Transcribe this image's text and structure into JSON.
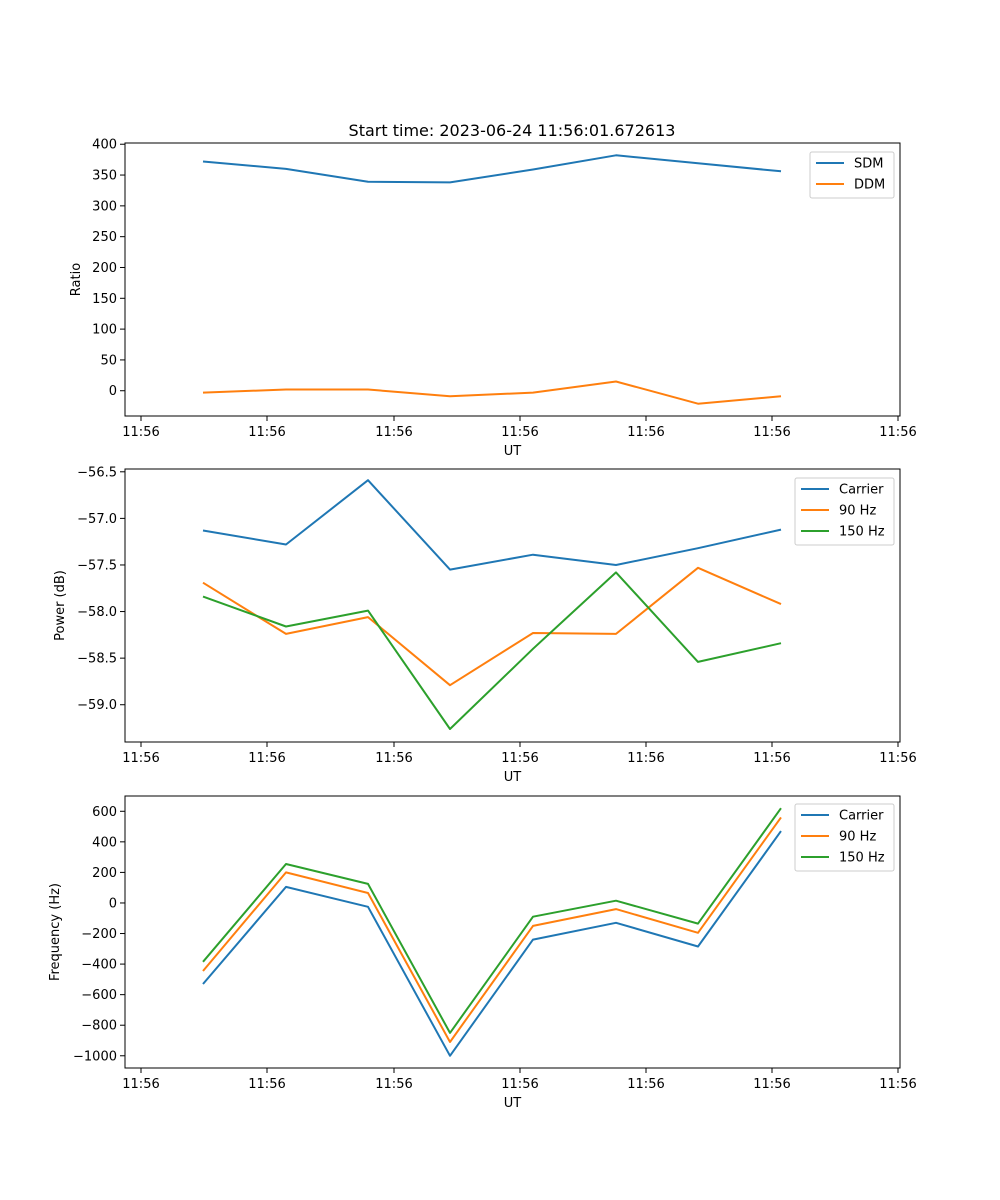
{
  "title": "Start time: 2023-06-24 11:56:01.672613",
  "colors": {
    "blue": "#1f77b4",
    "orange": "#ff7f0e",
    "green": "#2ca02c"
  },
  "chart_data": [
    {
      "type": "line",
      "title": "Start time: 2023-06-24 11:56:01.672613",
      "xlabel": "UT",
      "ylabel": "Ratio",
      "x_tick_labels": [
        "11:56",
        "11:56",
        "11:56",
        "11:56",
        "11:56",
        "11:56",
        "11:56"
      ],
      "y_ticks": [
        0,
        50,
        100,
        150,
        200,
        250,
        300,
        350,
        400
      ],
      "y_tick_labels": [
        "0",
        "50",
        "100",
        "150",
        "200",
        "250",
        "300",
        "350",
        "400"
      ],
      "ylim": [
        -41,
        402
      ],
      "legend": "top-right",
      "grid": false,
      "series": [
        {
          "name": "SDM",
          "color": "#1f77b4",
          "values": [
            372,
            360,
            339,
            338,
            359,
            382,
            369,
            356
          ]
        },
        {
          "name": "DDM",
          "color": "#ff7f0e",
          "values": [
            -3,
            2,
            2,
            -9,
            -3,
            15,
            -21,
            -9
          ]
        }
      ]
    },
    {
      "type": "line",
      "xlabel": "UT",
      "ylabel": "Power (dB)",
      "x_tick_labels": [
        "11:56",
        "11:56",
        "11:56",
        "11:56",
        "11:56",
        "11:56",
        "11:56"
      ],
      "y_ticks": [
        -59.0,
        -58.5,
        -58.0,
        -57.5,
        -57.0,
        -56.5
      ],
      "y_tick_labels": [
        "−59.0",
        "−58.5",
        "−58.0",
        "−57.5",
        "−57.0",
        "−56.5"
      ],
      "ylim": [
        -59.4,
        -56.47
      ],
      "legend": "top-right",
      "grid": false,
      "series": [
        {
          "name": "Carrier",
          "color": "#1f77b4",
          "values": [
            -57.13,
            -57.28,
            -56.59,
            -57.55,
            -57.39,
            -57.5,
            -57.32,
            -57.12
          ]
        },
        {
          "name": "90 Hz",
          "color": "#ff7f0e",
          "values": [
            -57.69,
            -58.24,
            -58.06,
            -58.79,
            -58.23,
            -58.24,
            -57.53,
            -57.92
          ]
        },
        {
          "name": "150 Hz",
          "color": "#2ca02c",
          "values": [
            -57.84,
            -58.16,
            -57.99,
            -59.26,
            -58.4,
            -57.58,
            -58.54,
            -58.34
          ]
        }
      ]
    },
    {
      "type": "line",
      "xlabel": "UT",
      "ylabel": "Frequency (Hz)",
      "x_tick_labels": [
        "11:56",
        "11:56",
        "11:56",
        "11:56",
        "11:56",
        "11:56",
        "11:56"
      ],
      "y_ticks": [
        -1000,
        -800,
        -600,
        -400,
        -200,
        0,
        200,
        400,
        600
      ],
      "y_tick_labels": [
        "−1000",
        "−800",
        "−600",
        "−400",
        "−200",
        "0",
        "200",
        "400",
        "600"
      ],
      "ylim": [
        -1080,
        700
      ],
      "legend": "top-right",
      "grid": false,
      "series": [
        {
          "name": "Carrier",
          "color": "#1f77b4",
          "values": [
            -530,
            105,
            -25,
            -1000,
            -240,
            -130,
            -285,
            470
          ]
        },
        {
          "name": "90 Hz",
          "color": "#ff7f0e",
          "values": [
            -445,
            200,
            65,
            -910,
            -150,
            -40,
            -195,
            560
          ]
        },
        {
          "name": "150 Hz",
          "color": "#2ca02c",
          "values": [
            -385,
            255,
            125,
            -850,
            -90,
            15,
            -135,
            620
          ]
        }
      ]
    }
  ]
}
